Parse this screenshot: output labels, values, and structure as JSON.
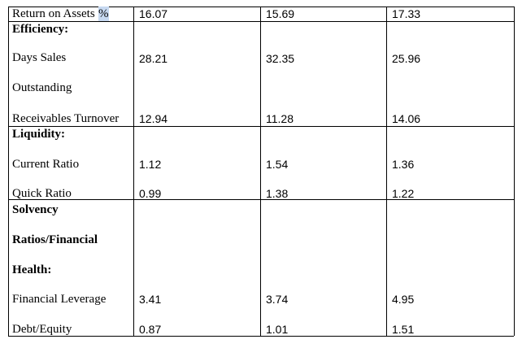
{
  "table": {
    "return_on_assets": {
      "label": "Return on Assets",
      "unit": "%",
      "values": [
        16.07,
        15.69,
        17.33
      ]
    },
    "efficiency": {
      "heading": "Efficiency:",
      "rows": [
        {
          "label": "Days Sales Outstanding",
          "values": [
            28.21,
            32.35,
            25.96
          ]
        },
        {
          "label": "Receivables Turnover",
          "values": [
            12.94,
            11.28,
            14.06
          ]
        }
      ]
    },
    "liquidity": {
      "heading": "Liquidity:",
      "rows": [
        {
          "label": "Current Ratio",
          "values": [
            1.12,
            1.54,
            1.36
          ]
        },
        {
          "label": "Quick Ratio",
          "values": [
            0.99,
            1.38,
            1.22
          ]
        }
      ]
    },
    "solvency": {
      "heading": "Solvency Ratios/Financial Health:",
      "rows": [
        {
          "label": "Financial Leverage",
          "values": [
            3.41,
            3.74,
            4.95
          ]
        },
        {
          "label": "Debt/Equity",
          "values": [
            0.87,
            1.01,
            1.51
          ]
        }
      ]
    }
  }
}
